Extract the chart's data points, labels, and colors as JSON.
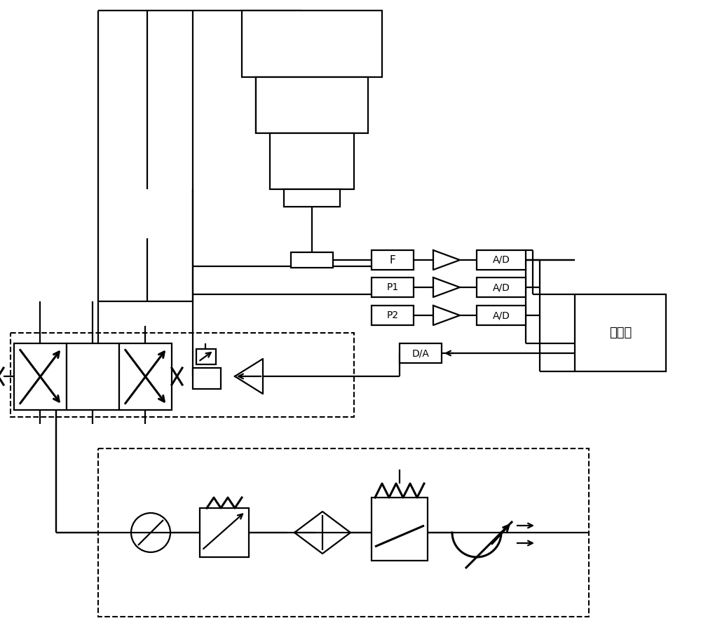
{
  "bg": "#ffffff",
  "lc": "#000000",
  "lw": 1.6,
  "tlw": 2.2,
  "fs_label": 10,
  "fs_computer": 13,
  "labels": {
    "F": "F",
    "P1": "P1",
    "P2": "P2",
    "AD": "A/D",
    "DA": "D/A",
    "computer": "计算机"
  }
}
